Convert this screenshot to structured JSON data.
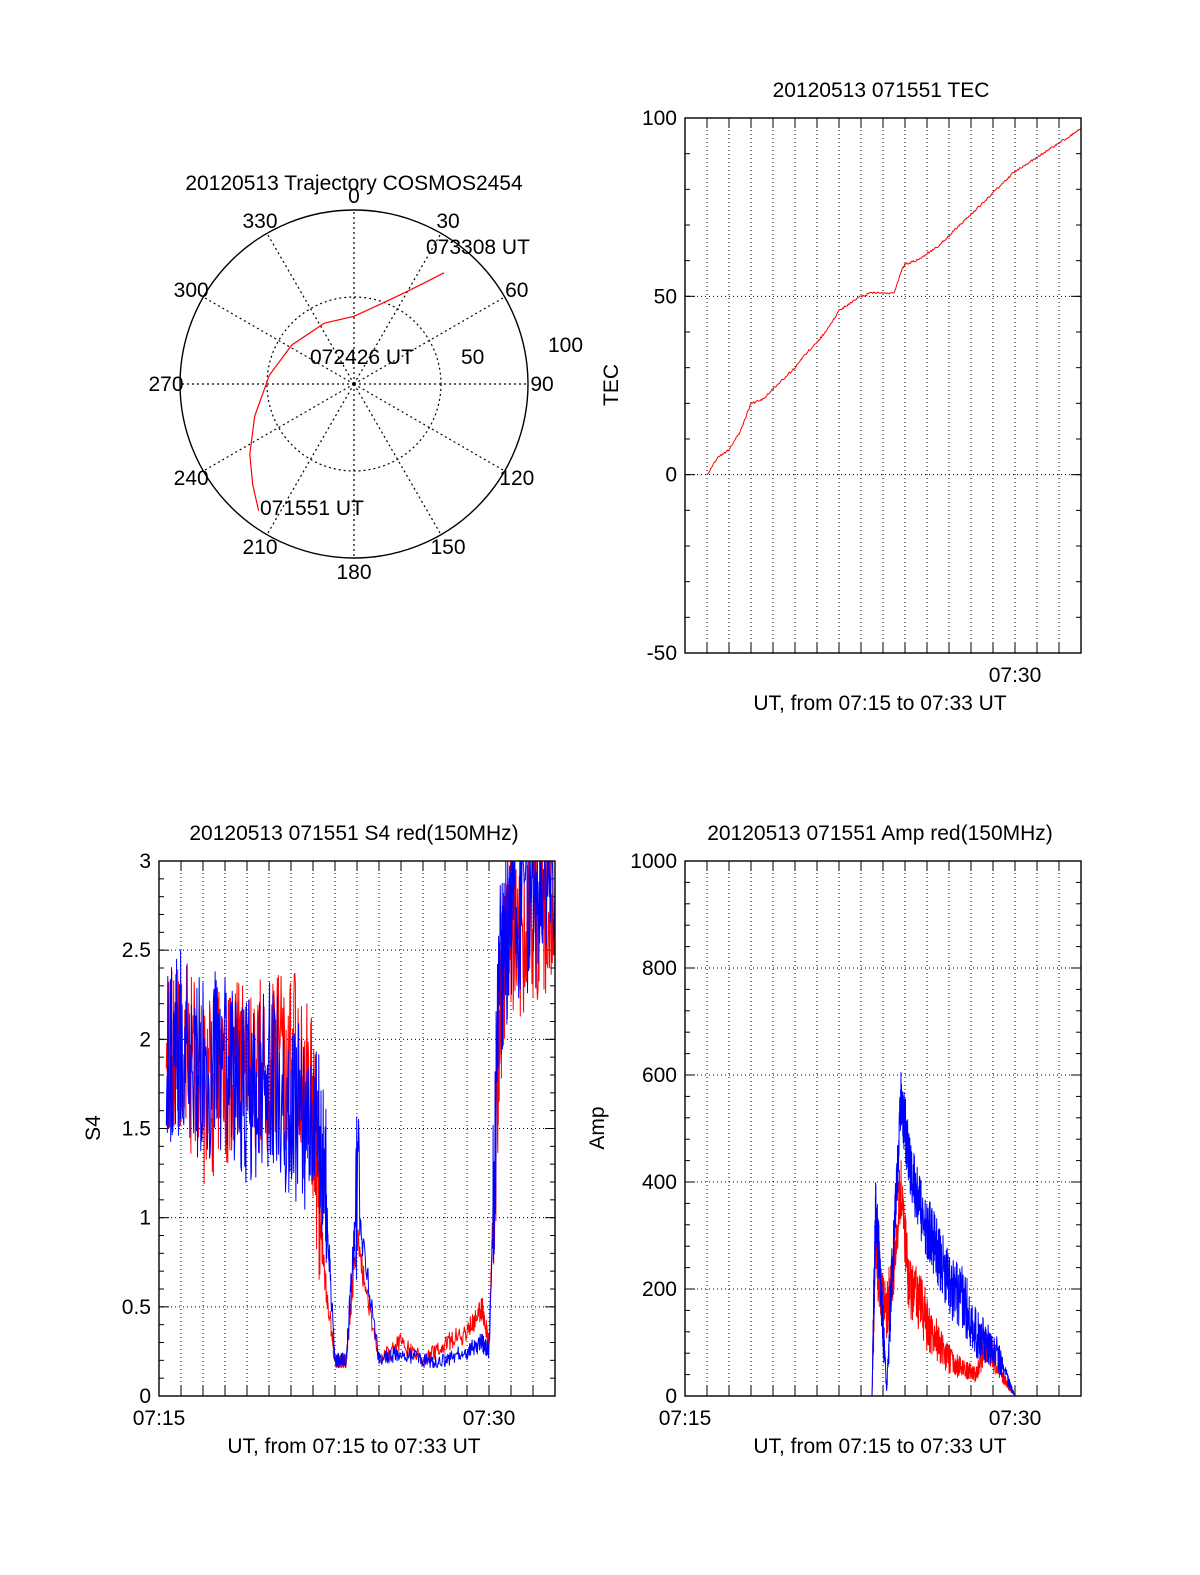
{
  "chart_data": [
    {
      "type": "polar",
      "title": "20120513 Trajectory COSMOS2454",
      "angle_labels": [
        "0",
        "30",
        "60",
        "90",
        "120",
        "150",
        "180",
        "210",
        "240",
        "270",
        "300",
        "330"
      ],
      "ring_labels": [
        "50",
        "100"
      ],
      "annotations": [
        "073308 UT",
        "072426 UT",
        "071551 UT"
      ],
      "series": [
        {
          "color": "#ff0000",
          "points": [
            {
              "azimuth": 217,
              "elevation": 8
            },
            {
              "azimuth": 225,
              "elevation": 16
            },
            {
              "azimuth": 236,
              "elevation": 25
            },
            {
              "azimuth": 252,
              "elevation": 36
            },
            {
              "azimuth": 276,
              "elevation": 46
            },
            {
              "azimuth": 302,
              "elevation": 52
            },
            {
              "azimuth": 334,
              "elevation": 55
            },
            {
              "azimuth": 0,
              "elevation": 55
            },
            {
              "azimuth": 19,
              "elevation": 46
            },
            {
              "azimuth": 29,
              "elevation": 36
            },
            {
              "azimuth": 35,
              "elevation": 26
            },
            {
              "azimuth": 39,
              "elevation": 16
            }
          ]
        }
      ]
    },
    {
      "type": "line",
      "title": "20120513 071551 TEC",
      "xlabel": "UT, from 07:15 to 07:33 UT",
      "ylabel": "TEC",
      "xlim": [
        "07:15:00",
        "07:33:00"
      ],
      "ylim": [
        -50,
        100
      ],
      "yticks": [
        "-50",
        "0",
        "50",
        "100"
      ],
      "xticks": [
        {
          "x": "07:30:00",
          "label": "07:30"
        }
      ],
      "grid": true,
      "series": [
        {
          "color": "#ff0000",
          "x": [
            "07:16:00",
            "07:16:30",
            "07:17:00",
            "07:17:30",
            "07:18:00",
            "07:18:30",
            "07:19:00",
            "07:19:30",
            "07:20:00",
            "07:20:30",
            "07:21:00",
            "07:21:30",
            "07:22:00",
            "07:22:30",
            "07:23:00",
            "07:23:30",
            "07:24:00",
            "07:24:30",
            "07:24:50",
            "07:25:00",
            "07:25:30",
            "07:26:00",
            "07:26:30",
            "07:27:00",
            "07:27:30",
            "07:28:00",
            "07:28:30",
            "07:29:00",
            "07:29:30",
            "07:30:00",
            "07:30:30",
            "07:31:00",
            "07:31:30",
            "07:32:00",
            "07:32:30",
            "07:33:00"
          ],
          "y": [
            0,
            5,
            7,
            12,
            20,
            21,
            24,
            27,
            30,
            34,
            37,
            41,
            46,
            48,
            50,
            51,
            51,
            51,
            57,
            59,
            60,
            62,
            64,
            67,
            70,
            73,
            76,
            79,
            82,
            85,
            87,
            89,
            91,
            93,
            95,
            97
          ]
        }
      ]
    },
    {
      "type": "line",
      "title": "20120513 071551 S4 red(150MHz)",
      "xlabel": "UT, from 07:15 to 07:33 UT",
      "ylabel": "S4",
      "xlim": [
        "07:15:00",
        "07:33:00"
      ],
      "ylim": [
        0,
        3
      ],
      "yticks": [
        "0",
        "0.5",
        "1",
        "1.5",
        "2",
        "2.5",
        "3"
      ],
      "xticks": [
        {
          "x": "07:15:00",
          "label": "07:15"
        },
        {
          "x": "07:30:00",
          "label": "07:30"
        }
      ],
      "grid": true,
      "series": [
        {
          "color": "#ff0000",
          "x": [
            "07:15:20",
            "07:16:00",
            "07:17:00",
            "07:18:00",
            "07:19:00",
            "07:20:00",
            "07:21:00",
            "07:22:00",
            "07:22:30",
            "07:23:00",
            "07:23:30",
            "07:24:00",
            "07:25:00",
            "07:26:00",
            "07:27:00",
            "07:28:00",
            "07:29:00",
            "07:29:40",
            "07:30:00",
            "07:30:30",
            "07:31:00",
            "07:32:00",
            "07:33:00"
          ],
          "y": [
            1.8,
            2.0,
            1.7,
            1.8,
            1.9,
            1.8,
            1.9,
            1.6,
            0.7,
            0.2,
            0.2,
            0.9,
            0.2,
            0.3,
            0.2,
            0.3,
            0.35,
            0.5,
            0.3,
            2.2,
            2.6,
            2.7,
            2.8
          ]
        },
        {
          "color": "#0000ff",
          "x": [
            "07:15:20",
            "07:16:00",
            "07:17:00",
            "07:18:00",
            "07:19:00",
            "07:20:00",
            "07:21:00",
            "07:22:00",
            "07:22:30",
            "07:23:00",
            "07:23:30",
            "07:24:00",
            "07:25:00",
            "07:26:00",
            "07:27:00",
            "07:28:00",
            "07:29:00",
            "07:29:40",
            "07:30:00",
            "07:30:30",
            "07:31:00",
            "07:32:00",
            "07:33:00"
          ],
          "y": [
            1.9,
            2.0,
            1.8,
            1.9,
            1.7,
            1.8,
            1.6,
            1.5,
            1.3,
            0.2,
            0.2,
            1.1,
            0.2,
            0.25,
            0.2,
            0.2,
            0.25,
            0.3,
            0.25,
            2.4,
            2.7,
            2.8,
            2.9
          ]
        }
      ]
    },
    {
      "type": "line",
      "title": "20120513 071551 Amp red(150MHz)",
      "xlabel": "UT, from 07:15 to 07:33 UT",
      "ylabel": "Amp",
      "xlim": [
        "07:15:00",
        "07:33:00"
      ],
      "ylim": [
        0,
        1000
      ],
      "yticks": [
        "0",
        "200",
        "400",
        "600",
        "800",
        "1000"
      ],
      "xticks": [
        {
          "x": "07:15:00",
          "label": "07:15"
        },
        {
          "x": "07:30:00",
          "label": "07:30"
        }
      ],
      "grid": true,
      "series": [
        {
          "color": "#ff0000",
          "x": [
            "07:15:50",
            "07:23:30",
            "07:23:40",
            "07:23:50",
            "07:24:10",
            "07:24:30",
            "07:24:50",
            "07:25:10",
            "07:25:40",
            "07:26:10",
            "07:26:40",
            "07:27:10",
            "07:27:40",
            "07:28:10",
            "07:28:40",
            "07:29:10",
            "07:29:40",
            "07:30:00",
            "07:33:00"
          ],
          "y": [
            0,
            0,
            300,
            200,
            150,
            250,
            400,
            200,
            180,
            120,
            90,
            60,
            50,
            40,
            100,
            60,
            20,
            0,
            0
          ]
        },
        {
          "color": "#0000ff",
          "x": [
            "07:15:50",
            "07:23:30",
            "07:23:40",
            "07:23:50",
            "07:24:10",
            "07:24:30",
            "07:24:50",
            "07:25:10",
            "07:25:40",
            "07:26:10",
            "07:26:40",
            "07:27:10",
            "07:27:40",
            "07:28:10",
            "07:28:40",
            "07:29:10",
            "07:29:40",
            "07:30:00",
            "07:33:00"
          ],
          "y": [
            0,
            0,
            350,
            250,
            10,
            300,
            560,
            450,
            350,
            300,
            250,
            200,
            180,
            120,
            100,
            80,
            30,
            0,
            0
          ]
        }
      ]
    }
  ]
}
